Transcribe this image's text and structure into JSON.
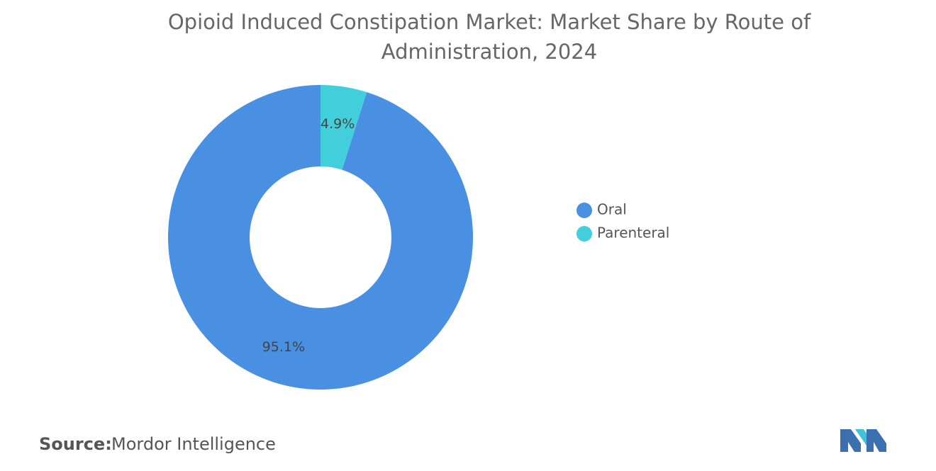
{
  "chart_data": {
    "type": "donut",
    "title": "Opioid Induced Constipation Market: Market Share by Route of Administration, 2024",
    "categories": [
      "Oral",
      "Parenteral"
    ],
    "values": [
      95.1,
      4.9
    ],
    "value_labels": [
      "95.1%",
      "4.9%"
    ],
    "colors": [
      "#4a90e2",
      "#40cfdb"
    ],
    "legend": "right"
  },
  "footer": {
    "source_label": "Source:",
    "source": "Mordor Intelligence"
  }
}
